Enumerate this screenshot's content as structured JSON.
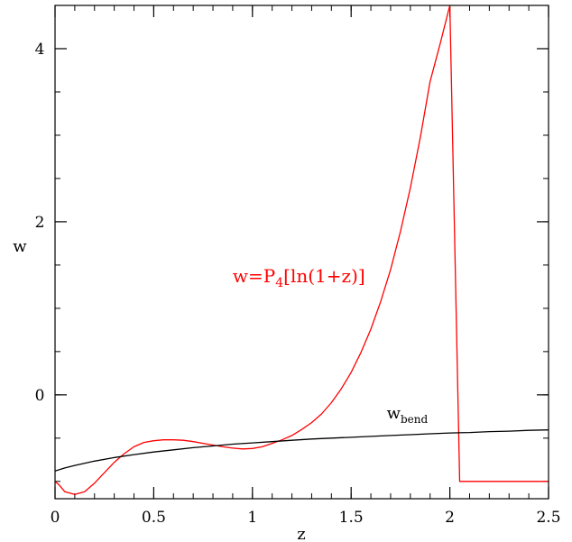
{
  "chart_data": {
    "type": "line",
    "title": "",
    "xlabel": "z",
    "ylabel": "w",
    "xlim": [
      0,
      2.5
    ],
    "ylim": [
      -1.2,
      4.5
    ],
    "x_ticks": [
      0,
      0.5,
      1,
      1.5,
      2,
      2.5
    ],
    "x_tick_labels": [
      "0",
      "0.5",
      "1",
      "1.5",
      "2",
      "2.5"
    ],
    "y_ticks": [
      0,
      2,
      4
    ],
    "y_tick_labels": [
      "0",
      "2",
      "4"
    ],
    "x_minor_step": 0.1,
    "y_minor_step": 0.5,
    "grid": false,
    "series": [
      {
        "name": "w=P4[ln(1+z)]",
        "color": "#ff0000",
        "x": [
          0,
          0.02,
          0.05,
          0.1,
          0.15,
          0.2,
          0.25,
          0.3,
          0.35,
          0.4,
          0.45,
          0.5,
          0.55,
          0.6,
          0.65,
          0.7,
          0.75,
          0.8,
          0.85,
          0.9,
          0.95,
          1.0,
          1.05,
          1.1,
          1.15,
          1.2,
          1.25,
          1.3,
          1.35,
          1.4,
          1.45,
          1.5,
          1.55,
          1.6,
          1.65,
          1.7,
          1.75,
          1.8,
          1.85,
          1.9,
          1.95,
          2.0,
          2.05,
          2.05,
          2.5
        ],
        "y": [
          -1.0,
          -1.04,
          -1.12,
          -1.15,
          -1.12,
          -1.02,
          -0.9,
          -0.78,
          -0.68,
          -0.6,
          -0.55,
          -0.53,
          -0.52,
          -0.52,
          -0.525,
          -0.54,
          -0.56,
          -0.58,
          -0.6,
          -0.615,
          -0.625,
          -0.62,
          -0.6,
          -0.56,
          -0.52,
          -0.47,
          -0.4,
          -0.32,
          -0.22,
          -0.09,
          0.07,
          0.26,
          0.49,
          0.76,
          1.08,
          1.45,
          1.89,
          2.39,
          2.97,
          3.62,
          4.05,
          4.5,
          -1.0,
          -1.0,
          -1.0
        ]
      },
      {
        "name": "w_bend",
        "color": "#000000",
        "x": [
          0,
          0.05,
          0.1,
          0.2,
          0.3,
          0.4,
          0.5,
          0.6,
          0.7,
          0.8,
          0.9,
          1.0,
          1.1,
          1.2,
          1.3,
          1.4,
          1.5,
          1.6,
          1.7,
          1.8,
          1.9,
          2.0,
          2.1,
          2.2,
          2.3,
          2.4,
          2.5
        ],
        "y": [
          -0.88,
          -0.845,
          -0.815,
          -0.765,
          -0.725,
          -0.69,
          -0.66,
          -0.635,
          -0.61,
          -0.59,
          -0.57,
          -0.555,
          -0.54,
          -0.525,
          -0.51,
          -0.5,
          -0.49,
          -0.48,
          -0.47,
          -0.46,
          -0.45,
          -0.44,
          -0.435,
          -0.425,
          -0.42,
          -0.41,
          -0.405
        ]
      }
    ],
    "annotations": [
      {
        "id": "red",
        "color": "#ff0000",
        "at": [
          0.9,
          1.3
        ],
        "base": "w=P",
        "sub": "4",
        "rest": "[ln(1+z)]"
      },
      {
        "id": "black",
        "color": "#000000",
        "at": [
          1.68,
          -0.27
        ],
        "base": "w",
        "sub": "bend",
        "rest": ""
      }
    ]
  }
}
